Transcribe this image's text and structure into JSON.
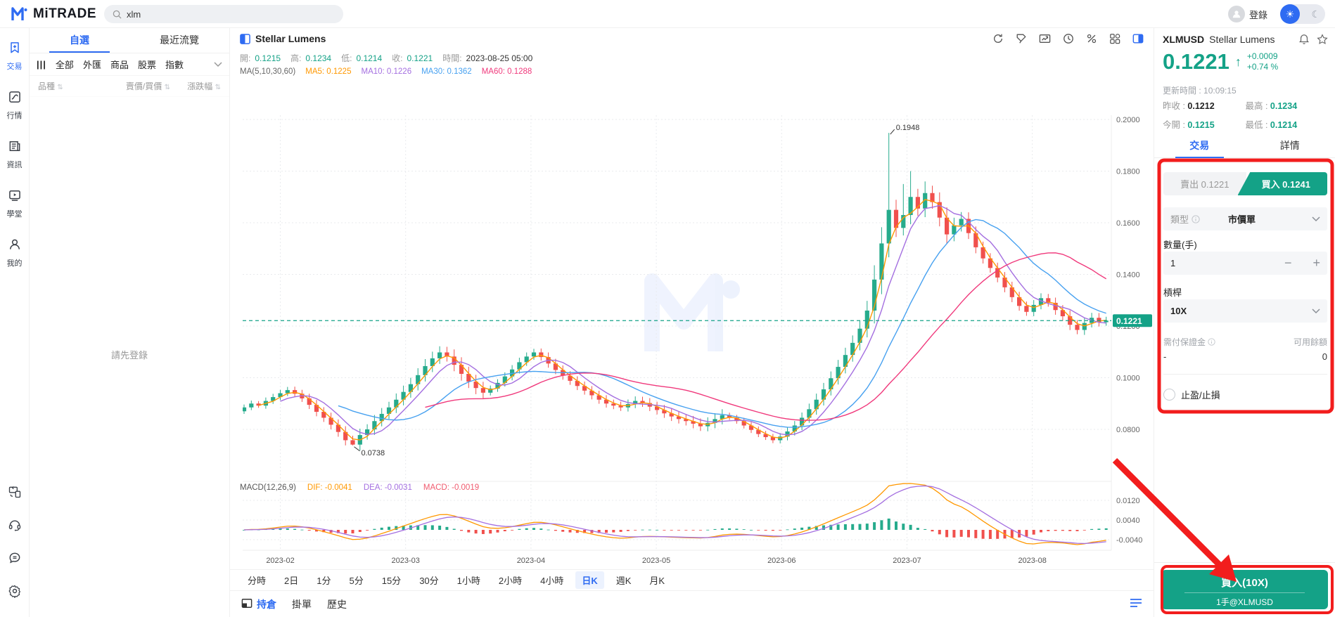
{
  "colors": {
    "accent": "#2e6bf2",
    "teal": "#14a287",
    "up": "#26ab8c",
    "down": "#f0504d",
    "ma5": "#ff9800",
    "ma10": "#a46fe0",
    "ma30": "#47a1f0",
    "ma60": "#f0397c",
    "annotation_red": "#f21d1d"
  },
  "header": {
    "logo_text": "MiTRADE",
    "search_value": "xlm",
    "login_label": "登錄"
  },
  "sidebar": {
    "items": [
      {
        "label": "交易",
        "icon": "trade-icon",
        "active": true
      },
      {
        "label": "行情",
        "icon": "markets-icon",
        "active": false
      },
      {
        "label": "資訊",
        "icon": "news-icon",
        "active": false
      },
      {
        "label": "學堂",
        "icon": "academy-icon",
        "active": false
      },
      {
        "label": "我的",
        "icon": "profile-icon",
        "active": false
      }
    ],
    "bottom_icons": [
      "device-switch-icon",
      "support-icon",
      "feedback-icon",
      "settings-icon"
    ]
  },
  "watchlist": {
    "tabs": [
      {
        "label": "自選",
        "active": true
      },
      {
        "label": "最近流覽",
        "active": false
      }
    ],
    "filters": [
      "全部",
      "外匯",
      "商品",
      "股票",
      "指數"
    ],
    "columns": [
      "品種",
      "賣價/買價",
      "漲跌幅"
    ],
    "empty_text": "請先登錄"
  },
  "chart": {
    "title": "Stellar Lumens",
    "toolbar_icons": [
      "refresh-icon",
      "drawing-icon",
      "snapshot-icon",
      "time-icon",
      "percent-icon",
      "layout-icon",
      "collapse-panel-icon"
    ],
    "ohlc": {
      "open_label": "開:",
      "open": "0.1215",
      "high_label": "高:",
      "high": "0.1234",
      "low_label": "低:",
      "low": "0.1214",
      "close_label": "收:",
      "close": "0.1221",
      "time_label": "時間:",
      "time": "2023-08-25 05:00"
    },
    "ma": {
      "group": "MA(5,10,30,60)",
      "ma5": "MA5: 0.1225",
      "ma10": "MA10: 0.1226",
      "ma30": "MA30: 0.1362",
      "ma60": "MA60: 0.1288"
    },
    "macd": {
      "group": "MACD(12,26,9)",
      "dif": "DIF: -0.0041",
      "dea": "DEA: -0.0031",
      "macd": "MACD: -0.0019"
    }
  },
  "chart_data": {
    "type": "candlestick",
    "symbol": "XLMUSD",
    "interval": "日K",
    "x_labels": [
      "2023-02",
      "2023-03",
      "2023-04",
      "2023-05",
      "2023-06",
      "2023-07",
      "2023-08"
    ],
    "month_candle_index": [
      5,
      22.3,
      39.6,
      56.9,
      74.2,
      91.5,
      108.8
    ],
    "price_ticks": [
      0.2,
      0.18,
      0.16,
      0.14,
      0.12,
      0.1,
      0.08
    ],
    "macd_ticks": [
      0.012,
      0.004,
      -0.004
    ],
    "current_price": 0.1221,
    "annotations": [
      {
        "text": "0.1948",
        "candle": 89,
        "type": "high"
      },
      {
        "text": "0.0738",
        "candle": 15,
        "type": "low"
      }
    ],
    "closes": [
      0.0885,
      0.09,
      0.0892,
      0.091,
      0.0925,
      0.094,
      0.0952,
      0.0938,
      0.092,
      0.0895,
      0.0868,
      0.0845,
      0.0818,
      0.079,
      0.0758,
      0.0741,
      0.0778,
      0.08,
      0.0832,
      0.086,
      0.0885,
      0.0915,
      0.0945,
      0.0975,
      0.101,
      0.1045,
      0.1075,
      0.1098,
      0.1082,
      0.105,
      0.1015,
      0.0985,
      0.096,
      0.0942,
      0.0958,
      0.098,
      0.1005,
      0.1032,
      0.106,
      0.1082,
      0.1098,
      0.108,
      0.1055,
      0.103,
      0.1008,
      0.0988,
      0.0968,
      0.095,
      0.0932,
      0.0915,
      0.09,
      0.0892,
      0.0885,
      0.0898,
      0.091,
      0.0902,
      0.0888,
      0.0875,
      0.0862,
      0.085,
      0.084,
      0.0832,
      0.0822,
      0.0812,
      0.0825,
      0.084,
      0.0855,
      0.0845,
      0.0832,
      0.0815,
      0.0798,
      0.0782,
      0.077,
      0.0758,
      0.0772,
      0.0792,
      0.0815,
      0.0845,
      0.0878,
      0.0915,
      0.0955,
      0.0998,
      0.1042,
      0.1088,
      0.1135,
      0.119,
      0.126,
      0.138,
      0.152,
      0.165,
      0.158,
      0.163,
      0.17,
      0.1655,
      0.1715,
      0.168,
      0.162,
      0.1555,
      0.159,
      0.1615,
      0.156,
      0.1505,
      0.1462,
      0.1425,
      0.1388,
      0.135,
      0.1312,
      0.1278,
      0.1255,
      0.1282,
      0.1308,
      0.129,
      0.1262,
      0.1238,
      0.1205,
      0.1185,
      0.1212,
      0.1232,
      0.1215,
      0.1221
    ],
    "overrides": {
      "15": {
        "l": 0.0738
      },
      "89": {
        "h": 0.1948
      },
      "91": {
        "h": 0.175
      },
      "92": {
        "h": 0.18
      },
      "94": {
        "h": 0.176
      }
    },
    "ma_windows": [
      3,
      6,
      14,
      26
    ]
  },
  "timeframes": {
    "items": [
      "分時",
      "2日",
      "1分",
      "5分",
      "15分",
      "30分",
      "1小時",
      "2小時",
      "4小時",
      "日K",
      "週K",
      "月K"
    ],
    "active": "日K"
  },
  "bottom_tabs": {
    "items": [
      "持倉",
      "掛單",
      "歷史"
    ],
    "active": "持倉"
  },
  "quote_panel": {
    "symbol": "XLMUSD",
    "name": "Stellar Lumens",
    "price": "0.1221",
    "change": "+0.0009",
    "change_pct": "+0.74 %",
    "update_label": "更新時間 : ",
    "update_time": "10:09:15",
    "prev_close_label": "昨收 : ",
    "prev_close": "0.1212",
    "high_label": "最高 : ",
    "high": "0.1234",
    "open_label": "今開 : ",
    "open": "0.1215",
    "low_label": "最低 : ",
    "low": "0.1214",
    "tabs": [
      {
        "label": "交易",
        "active": true
      },
      {
        "label": "詳情",
        "active": false
      }
    ]
  },
  "trade_form": {
    "sell_label": "賣出 0.1221",
    "buy_label": "買入 0.1241",
    "type_label": "類型",
    "type_value": "市價單",
    "qty_label": "數量(手)",
    "qty_value": "1",
    "minus": "−",
    "plus": "+",
    "leverage_label": "槓桿",
    "leverage_value": "10X",
    "margin_label": "需付保證金",
    "margin_value": "-",
    "balance_label": "可用餘額",
    "balance_value": "0",
    "tp_sl_label": "止盈/止損"
  },
  "buy_footer": {
    "label": "買入(10X)",
    "sub": "1手@XLMUSD"
  }
}
